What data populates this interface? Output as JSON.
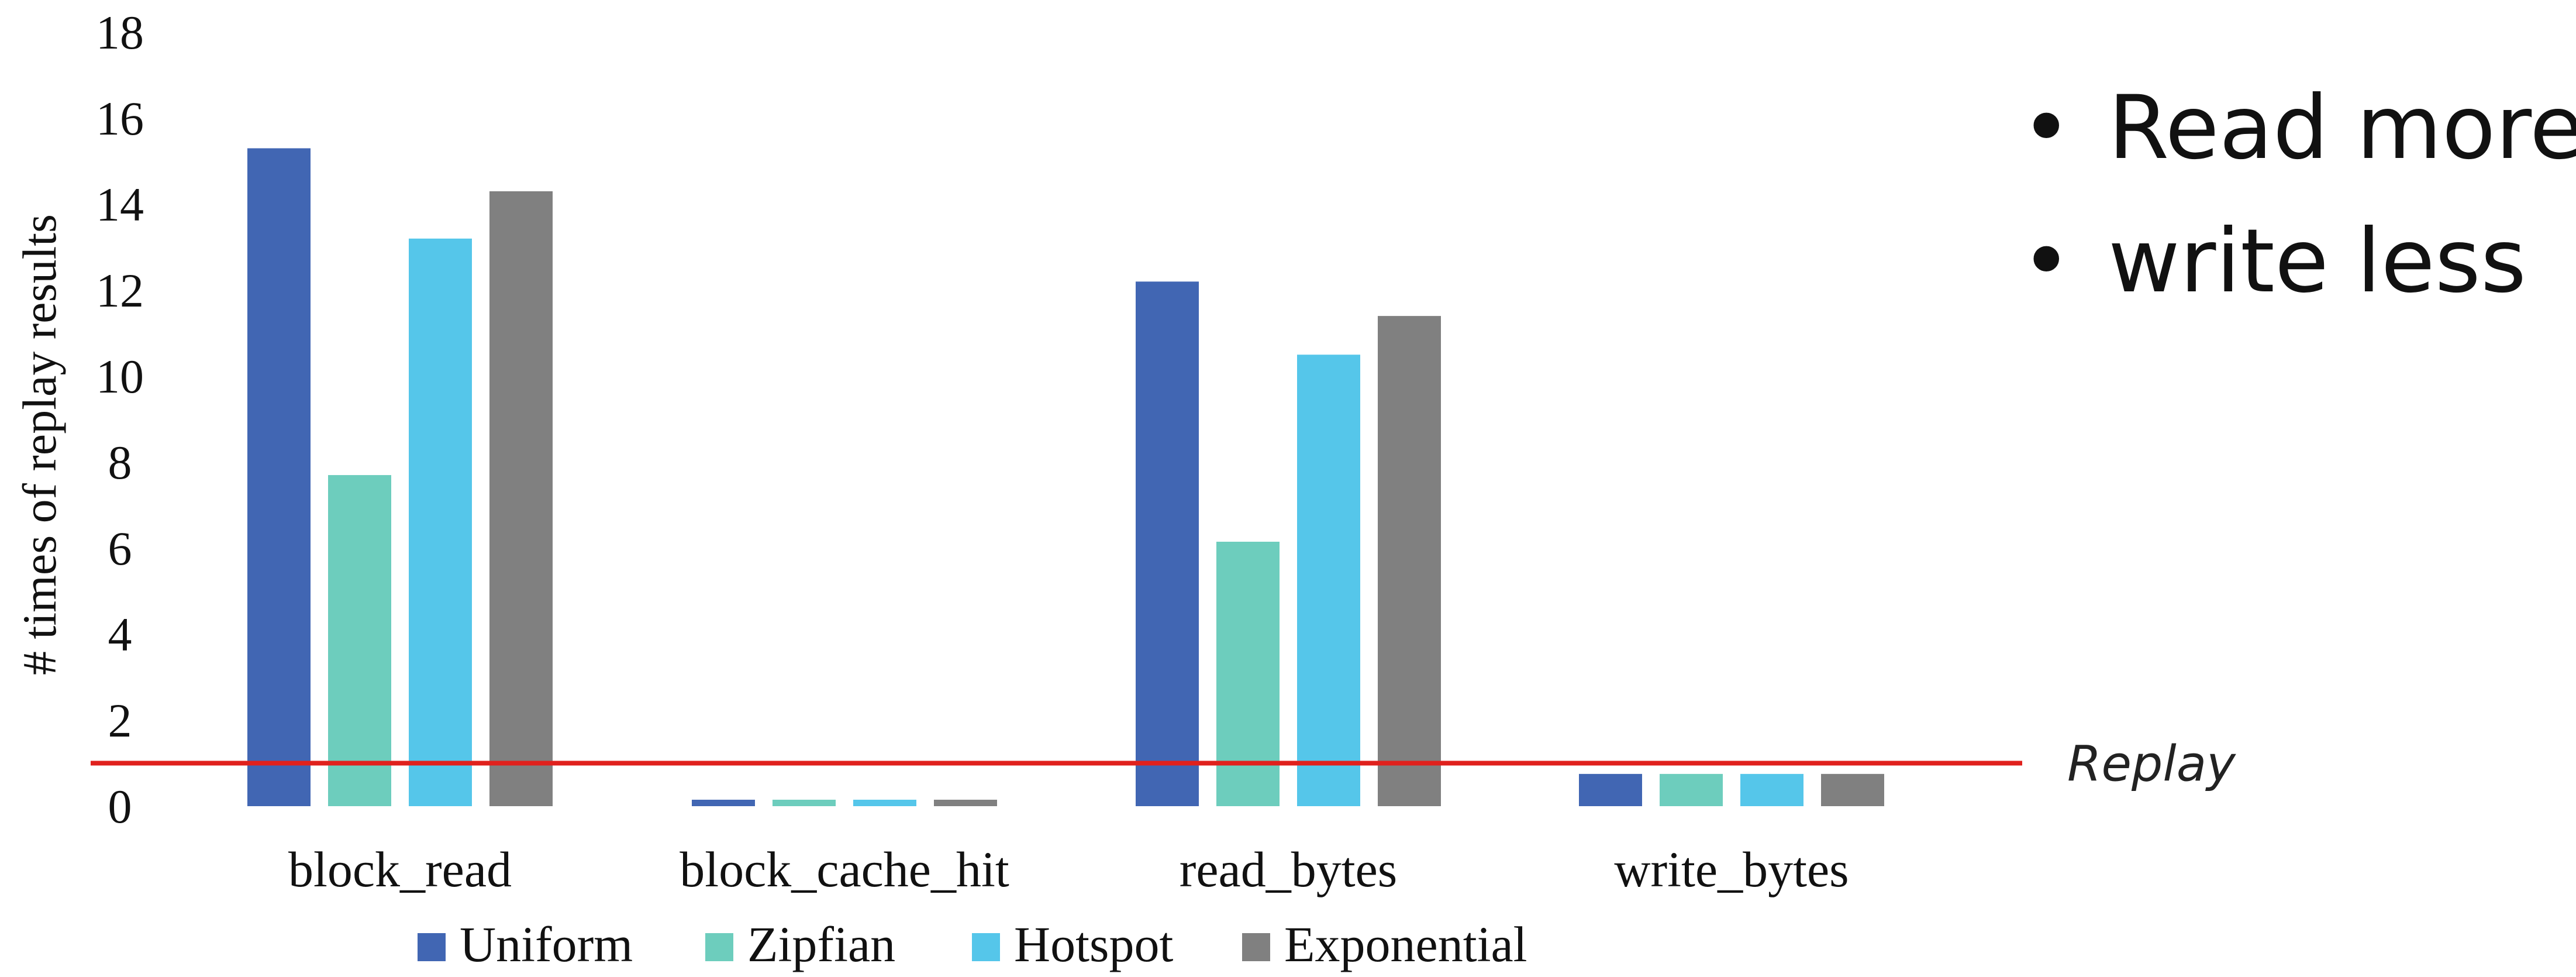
{
  "chart_data": {
    "type": "bar",
    "categories": [
      "block_read",
      "block_cache_hit",
      "read_bytes",
      "write_bytes"
    ],
    "series": [
      {
        "name": "Uniform",
        "color": "#4166b3",
        "values": [
          15.3,
          0.15,
          12.2,
          0.75
        ]
      },
      {
        "name": "Zipfian",
        "color": "#6dcdbd",
        "values": [
          7.7,
          0.15,
          6.15,
          0.75
        ]
      },
      {
        "name": "Hotspot",
        "color": "#55c6ea",
        "values": [
          13.2,
          0.15,
          10.5,
          0.75
        ]
      },
      {
        "name": "Exponential",
        "color": "#808080",
        "values": [
          14.3,
          0.15,
          11.4,
          0.75
        ]
      }
    ],
    "xlabel": "",
    "ylabel": "# times of replay results",
    "ylim": [
      0,
      18
    ],
    "yticks": [
      0,
      2,
      4,
      6,
      8,
      10,
      12,
      14,
      16,
      18
    ],
    "grid": false,
    "legend_position": "bottom",
    "reference_line": {
      "value": 1,
      "label": "Replay",
      "color": "#e0211d"
    },
    "annotations": [
      "Read more",
      "write less"
    ],
    "bullet": "•"
  }
}
